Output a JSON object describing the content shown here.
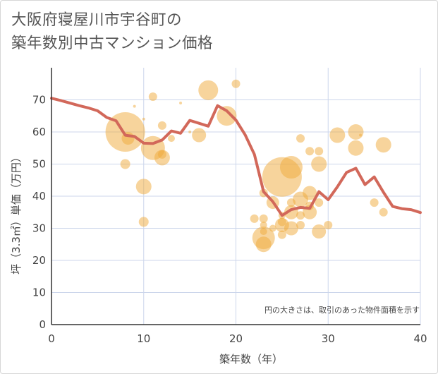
{
  "title_line1": "大阪府寝屋川市宇谷町の",
  "title_line2": "築年数別中古マンション価格",
  "colors": {
    "line": "#d2685a",
    "bubble": "#f0a93a",
    "grid": "#ccd6eb",
    "axis": "#444444"
  },
  "chart_data": {
    "type": "scatter",
    "title": "大阪府寝屋川市宇谷町の築年数別中古マンション価格",
    "xlabel": "築年数（年）",
    "ylabel": "坪（3.3㎡）単価（万円）",
    "xlim": [
      0,
      40
    ],
    "ylim": [
      0,
      80
    ],
    "x_ticks": [
      0,
      10,
      20,
      30,
      40
    ],
    "y_ticks": [
      0,
      10,
      20,
      30,
      40,
      50,
      60,
      70
    ],
    "grid": true,
    "note": "円の大きさは、取引のあった物件面積を示す",
    "series": [
      {
        "type": "line",
        "points": [
          [
            0,
            70.5
          ],
          [
            1,
            69.8
          ],
          [
            2,
            69
          ],
          [
            3,
            68.2
          ],
          [
            4,
            67.5
          ],
          [
            5,
            66.6
          ],
          [
            6,
            64.5
          ],
          [
            7,
            63.5
          ],
          [
            8,
            59
          ],
          [
            9,
            58.6
          ],
          [
            10,
            56.5
          ],
          [
            11,
            56.4
          ],
          [
            12,
            57.5
          ],
          [
            13,
            60.3
          ],
          [
            14,
            59.6
          ],
          [
            15,
            63.6
          ],
          [
            16,
            62.7
          ],
          [
            17,
            61.8
          ],
          [
            18,
            68.2
          ],
          [
            19,
            66.6
          ],
          [
            20,
            63.7
          ],
          [
            21,
            59.1
          ],
          [
            22,
            53
          ],
          [
            23,
            41.4
          ],
          [
            24,
            38.3
          ],
          [
            25,
            34
          ],
          [
            26,
            35.8
          ],
          [
            27,
            36.5
          ],
          [
            28,
            36.2
          ],
          [
            29,
            41.4
          ],
          [
            30,
            38.9
          ],
          [
            31,
            42.9
          ],
          [
            32,
            47.4
          ],
          [
            33,
            48.7
          ],
          [
            34,
            43.6
          ],
          [
            35,
            46
          ],
          [
            36,
            41.2
          ],
          [
            37,
            36.8
          ],
          [
            38,
            36.1
          ],
          [
            39,
            35.8
          ],
          [
            40,
            34.9
          ]
        ]
      },
      {
        "type": "bubble",
        "points": [
          [
            8,
            60,
            28
          ],
          [
            8,
            50,
            7
          ],
          [
            8.3,
            58,
            9
          ],
          [
            9,
            68,
            2
          ],
          [
            10,
            43,
            11
          ],
          [
            10,
            32,
            7
          ],
          [
            10,
            64,
            2
          ],
          [
            11,
            55,
            17
          ],
          [
            11,
            71,
            6
          ],
          [
            12,
            52,
            11
          ],
          [
            12,
            53,
            6
          ],
          [
            12,
            62,
            6
          ],
          [
            13,
            58,
            5
          ],
          [
            14,
            69,
            2
          ],
          [
            15,
            60,
            2
          ],
          [
            16,
            59,
            10
          ],
          [
            17,
            73,
            14
          ],
          [
            19,
            65,
            14
          ],
          [
            20,
            75,
            6
          ],
          [
            22,
            33,
            6
          ],
          [
            23,
            27,
            16
          ],
          [
            23,
            25,
            11
          ],
          [
            23,
            41,
            6
          ],
          [
            23,
            33,
            6
          ],
          [
            23,
            31,
            5
          ],
          [
            23,
            29,
            5
          ],
          [
            24,
            38,
            9
          ],
          [
            24,
            30,
            5
          ],
          [
            25,
            46,
            28
          ],
          [
            25,
            31,
            10
          ],
          [
            25,
            28,
            6
          ],
          [
            25,
            32,
            6
          ],
          [
            25,
            34,
            5
          ],
          [
            26,
            49,
            16
          ],
          [
            26,
            35,
            10
          ],
          [
            26,
            30,
            10
          ],
          [
            26,
            38,
            6
          ],
          [
            27,
            58,
            6
          ],
          [
            27,
            39,
            11
          ],
          [
            27,
            31,
            6
          ],
          [
            27,
            34,
            6
          ],
          [
            28,
            41,
            10
          ],
          [
            28,
            35,
            10
          ],
          [
            28,
            54,
            6
          ],
          [
            28,
            37,
            6
          ],
          [
            29,
            50,
            11
          ],
          [
            29,
            29,
            10
          ],
          [
            29,
            54,
            6
          ],
          [
            29,
            38,
            6
          ],
          [
            30,
            31,
            6
          ],
          [
            31,
            59,
            11
          ],
          [
            33,
            60,
            11
          ],
          [
            33,
            55,
            11
          ],
          [
            33.5,
            59,
            2
          ],
          [
            35,
            38,
            6
          ],
          [
            36,
            56,
            11
          ],
          [
            36,
            35,
            6
          ]
        ]
      }
    ]
  }
}
